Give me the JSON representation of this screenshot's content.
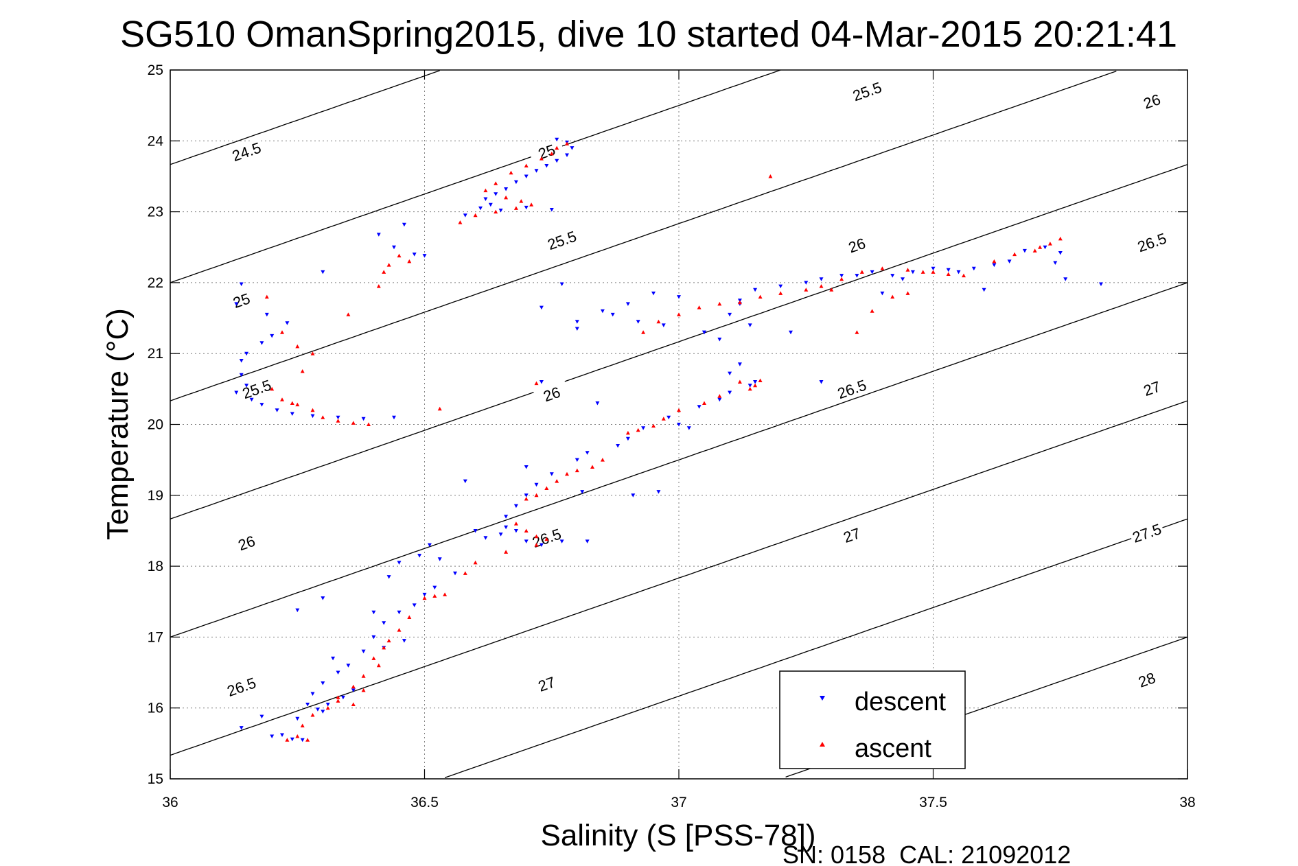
{
  "chart_data": {
    "type": "scatter",
    "title": "SG510 OmanSpring2015, dive 10 started 04-Mar-2015 20:21:41",
    "xlabel": "Salinity (S [PSS-78])",
    "ylabel": "Temperature (°C)",
    "xlim": [
      36,
      38
    ],
    "ylim": [
      15,
      25
    ],
    "xticks": [
      36,
      36.5,
      37,
      37.5,
      38
    ],
    "xtick_labels": [
      "36",
      "36.5",
      "37",
      "37.5",
      "38"
    ],
    "yticks": [
      15,
      16,
      17,
      18,
      19,
      20,
      21,
      22,
      23,
      24,
      25
    ],
    "ytick_labels": [
      "15",
      "16",
      "17",
      "18",
      "19",
      "20",
      "21",
      "22",
      "23",
      "24",
      "25"
    ],
    "grid": true,
    "legend_position": "bottom-right",
    "footer": "SN: 0158  CAL: 21092012",
    "series": [
      {
        "name": "descent",
        "color": "#0000ff",
        "marker": "triangle-down",
        "points": [
          [
            36.76,
            24.02
          ],
          [
            36.78,
            23.98
          ],
          [
            36.79,
            23.9
          ],
          [
            36.78,
            23.8
          ],
          [
            36.76,
            23.72
          ],
          [
            36.74,
            23.65
          ],
          [
            36.72,
            23.58
          ],
          [
            36.7,
            23.5
          ],
          [
            36.68,
            23.42
          ],
          [
            36.66,
            23.32
          ],
          [
            36.64,
            23.25
          ],
          [
            36.62,
            23.18
          ],
          [
            36.63,
            23.1
          ],
          [
            36.61,
            23.05
          ],
          [
            36.65,
            23.02
          ],
          [
            36.7,
            23.06
          ],
          [
            36.75,
            23.03
          ],
          [
            36.58,
            22.95
          ],
          [
            36.46,
            22.82
          ],
          [
            36.41,
            22.68
          ],
          [
            36.44,
            22.5
          ],
          [
            36.5,
            22.38
          ],
          [
            36.48,
            22.4
          ],
          [
            36.3,
            22.15
          ],
          [
            36.14,
            21.98
          ],
          [
            36.13,
            21.7
          ],
          [
            36.19,
            21.55
          ],
          [
            36.23,
            21.43
          ],
          [
            36.2,
            21.25
          ],
          [
            36.18,
            21.15
          ],
          [
            36.15,
            21.0
          ],
          [
            36.14,
            20.9
          ],
          [
            36.14,
            20.7
          ],
          [
            36.15,
            20.55
          ],
          [
            36.13,
            20.45
          ],
          [
            36.16,
            20.35
          ],
          [
            36.18,
            20.28
          ],
          [
            36.21,
            20.2
          ],
          [
            36.24,
            20.15
          ],
          [
            36.28,
            20.12
          ],
          [
            36.33,
            20.1
          ],
          [
            36.38,
            20.08
          ],
          [
            36.44,
            20.1
          ],
          [
            36.77,
            21.98
          ],
          [
            36.8,
            21.35
          ],
          [
            36.85,
            21.6
          ],
          [
            36.9,
            21.7
          ],
          [
            36.95,
            21.85
          ],
          [
            37.0,
            21.8
          ],
          [
            36.87,
            21.55
          ],
          [
            36.92,
            21.45
          ],
          [
            36.97,
            21.4
          ],
          [
            37.05,
            21.3
          ],
          [
            37.08,
            21.2
          ],
          [
            37.12,
            21.7
          ],
          [
            37.15,
            21.9
          ],
          [
            37.2,
            21.95
          ],
          [
            37.25,
            22.0
          ],
          [
            37.28,
            22.05
          ],
          [
            37.32,
            22.1
          ],
          [
            37.35,
            22.1
          ],
          [
            37.38,
            22.15
          ],
          [
            37.42,
            22.1
          ],
          [
            37.44,
            22.05
          ],
          [
            37.46,
            22.15
          ],
          [
            37.5,
            22.2
          ],
          [
            37.53,
            22.18
          ],
          [
            37.55,
            22.15
          ],
          [
            37.58,
            22.2
          ],
          [
            37.62,
            22.25
          ],
          [
            37.65,
            22.3
          ],
          [
            37.68,
            22.45
          ],
          [
            37.72,
            22.5
          ],
          [
            37.75,
            22.42
          ],
          [
            37.74,
            22.28
          ],
          [
            37.76,
            22.05
          ],
          [
            37.83,
            21.98
          ],
          [
            37.6,
            21.9
          ],
          [
            37.4,
            21.85
          ],
          [
            37.22,
            21.3
          ],
          [
            36.8,
            21.45
          ],
          [
            36.73,
            21.65
          ],
          [
            37.12,
            21.75
          ],
          [
            37.1,
            21.55
          ],
          [
            37.14,
            21.4
          ],
          [
            37.05,
            21.3
          ],
          [
            37.12,
            20.85
          ],
          [
            37.1,
            20.72
          ],
          [
            37.15,
            20.6
          ],
          [
            37.14,
            20.55
          ],
          [
            37.1,
            20.45
          ],
          [
            37.08,
            20.35
          ],
          [
            37.04,
            20.25
          ],
          [
            37.28,
            20.6
          ],
          [
            37.0,
            20.0
          ],
          [
            37.02,
            19.95
          ],
          [
            36.98,
            20.1
          ],
          [
            36.93,
            19.95
          ],
          [
            36.9,
            19.8
          ],
          [
            36.88,
            19.7
          ],
          [
            36.82,
            19.6
          ],
          [
            36.8,
            19.5
          ],
          [
            36.75,
            19.3
          ],
          [
            36.72,
            19.15
          ],
          [
            36.7,
            19.0
          ],
          [
            36.68,
            18.85
          ],
          [
            36.66,
            18.7
          ],
          [
            36.68,
            18.5
          ],
          [
            36.65,
            18.45
          ],
          [
            36.62,
            18.4
          ],
          [
            36.66,
            18.55
          ],
          [
            36.7,
            18.35
          ],
          [
            36.73,
            18.3
          ],
          [
            36.77,
            18.35
          ],
          [
            36.82,
            18.35
          ],
          [
            36.6,
            18.5
          ],
          [
            36.58,
            19.2
          ],
          [
            36.7,
            19.4
          ],
          [
            36.73,
            20.6
          ],
          [
            36.84,
            20.3
          ],
          [
            36.96,
            19.05
          ],
          [
            36.91,
            19.0
          ],
          [
            36.81,
            19.05
          ],
          [
            36.52,
            17.7
          ],
          [
            36.5,
            17.6
          ],
          [
            36.48,
            17.45
          ],
          [
            36.45,
            17.35
          ],
          [
            36.42,
            17.2
          ],
          [
            36.4,
            17.0
          ],
          [
            36.38,
            16.8
          ],
          [
            36.35,
            16.6
          ],
          [
            36.33,
            16.5
          ],
          [
            36.3,
            16.35
          ],
          [
            36.28,
            16.2
          ],
          [
            36.27,
            16.05
          ],
          [
            36.3,
            15.95
          ],
          [
            36.25,
            15.85
          ],
          [
            36.22,
            15.62
          ],
          [
            36.24,
            15.56
          ],
          [
            36.26,
            15.55
          ],
          [
            36.2,
            15.6
          ],
          [
            36.14,
            15.72
          ],
          [
            36.18,
            15.88
          ],
          [
            36.25,
            17.38
          ],
          [
            36.3,
            17.55
          ],
          [
            36.4,
            17.35
          ],
          [
            36.43,
            17.85
          ],
          [
            36.45,
            18.05
          ],
          [
            36.49,
            18.15
          ],
          [
            36.51,
            18.3
          ],
          [
            36.53,
            18.1
          ],
          [
            36.56,
            17.9
          ],
          [
            36.46,
            16.95
          ],
          [
            36.42,
            16.85
          ],
          [
            36.32,
            16.7
          ],
          [
            36.36,
            16.25
          ],
          [
            36.34,
            16.15
          ],
          [
            36.31,
            16.05
          ],
          [
            36.29,
            15.98
          ]
        ]
      },
      {
        "name": "ascent",
        "color": "#ff0000",
        "marker": "triangle-up",
        "points": [
          [
            36.78,
            23.96
          ],
          [
            36.76,
            23.9
          ],
          [
            36.75,
            23.82
          ],
          [
            36.73,
            23.75
          ],
          [
            36.7,
            23.65
          ],
          [
            36.67,
            23.55
          ],
          [
            36.64,
            23.4
          ],
          [
            36.62,
            23.3
          ],
          [
            36.66,
            23.2
          ],
          [
            36.69,
            23.15
          ],
          [
            36.71,
            23.1
          ],
          [
            36.68,
            23.05
          ],
          [
            36.64,
            23.0
          ],
          [
            36.6,
            22.95
          ],
          [
            36.57,
            22.85
          ],
          [
            36.45,
            22.38
          ],
          [
            36.47,
            22.3
          ],
          [
            36.43,
            22.25
          ],
          [
            36.42,
            22.15
          ],
          [
            36.41,
            21.95
          ],
          [
            36.35,
            21.55
          ],
          [
            36.19,
            21.8
          ],
          [
            36.22,
            21.3
          ],
          [
            36.25,
            21.1
          ],
          [
            36.28,
            21.0
          ],
          [
            36.26,
            20.75
          ],
          [
            36.2,
            20.5
          ],
          [
            36.22,
            20.35
          ],
          [
            36.24,
            20.3
          ],
          [
            36.25,
            20.28
          ],
          [
            36.28,
            20.2
          ],
          [
            36.3,
            20.1
          ],
          [
            36.33,
            20.05
          ],
          [
            36.36,
            20.02
          ],
          [
            36.39,
            20.0
          ],
          [
            36.53,
            20.22
          ],
          [
            36.72,
            20.58
          ],
          [
            37.18,
            23.5
          ],
          [
            36.93,
            21.3
          ],
          [
            36.96,
            21.45
          ],
          [
            37.0,
            21.55
          ],
          [
            37.04,
            21.65
          ],
          [
            37.08,
            21.7
          ],
          [
            37.12,
            21.72
          ],
          [
            37.16,
            21.8
          ],
          [
            37.2,
            21.85
          ],
          [
            37.25,
            21.9
          ],
          [
            37.28,
            21.95
          ],
          [
            37.32,
            22.05
          ],
          [
            37.36,
            22.15
          ],
          [
            37.4,
            22.2
          ],
          [
            37.45,
            22.18
          ],
          [
            37.48,
            22.15
          ],
          [
            37.5,
            22.15
          ],
          [
            37.53,
            22.12
          ],
          [
            37.56,
            22.1
          ],
          [
            37.62,
            22.3
          ],
          [
            37.66,
            22.4
          ],
          [
            37.7,
            22.45
          ],
          [
            37.73,
            22.55
          ],
          [
            37.75,
            22.62
          ],
          [
            37.71,
            22.5
          ],
          [
            37.3,
            21.9
          ],
          [
            37.42,
            21.8
          ],
          [
            37.45,
            21.85
          ],
          [
            37.38,
            21.6
          ],
          [
            37.35,
            21.3
          ],
          [
            37.12,
            20.6
          ],
          [
            37.15,
            20.55
          ],
          [
            37.16,
            20.62
          ],
          [
            37.14,
            20.5
          ],
          [
            37.08,
            20.4
          ],
          [
            37.05,
            20.3
          ],
          [
            37.0,
            20.2
          ],
          [
            36.97,
            20.08
          ],
          [
            36.95,
            19.98
          ],
          [
            36.92,
            19.92
          ],
          [
            36.9,
            19.88
          ],
          [
            36.85,
            19.5
          ],
          [
            36.83,
            19.4
          ],
          [
            36.8,
            19.35
          ],
          [
            36.78,
            19.3
          ],
          [
            36.76,
            19.2
          ],
          [
            36.74,
            19.1
          ],
          [
            36.72,
            19.0
          ],
          [
            36.7,
            18.95
          ],
          [
            36.68,
            18.6
          ],
          [
            36.7,
            18.5
          ],
          [
            36.72,
            18.42
          ],
          [
            36.74,
            18.38
          ],
          [
            36.72,
            18.3
          ],
          [
            36.66,
            18.2
          ],
          [
            36.6,
            18.05
          ],
          [
            36.58,
            17.9
          ],
          [
            36.54,
            17.6
          ],
          [
            36.52,
            17.58
          ],
          [
            36.5,
            17.55
          ],
          [
            36.47,
            17.28
          ],
          [
            36.45,
            17.1
          ],
          [
            36.43,
            16.95
          ],
          [
            36.42,
            16.85
          ],
          [
            36.4,
            16.7
          ],
          [
            36.41,
            16.6
          ],
          [
            36.38,
            16.45
          ],
          [
            36.36,
            16.3
          ],
          [
            36.33,
            16.15
          ],
          [
            36.31,
            16.0
          ],
          [
            36.28,
            15.9
          ],
          [
            36.26,
            15.75
          ],
          [
            36.25,
            15.6
          ],
          [
            36.27,
            15.55
          ],
          [
            36.23,
            15.55
          ],
          [
            36.36,
            16.05
          ],
          [
            36.33,
            16.1
          ],
          [
            36.38,
            16.25
          ]
        ]
      }
    ],
    "isopycnals": [
      {
        "value": 24.5,
        "labels": [
          [
            36.15,
            23.85
          ]
        ]
      },
      {
        "value": 25,
        "labels": [
          [
            36.14,
            21.75
          ],
          [
            36.74,
            23.85
          ]
        ]
      },
      {
        "value": 25.5,
        "labels": [
          [
            36.17,
            20.5
          ],
          [
            36.77,
            22.6
          ],
          [
            37.37,
            24.7
          ]
        ]
      },
      {
        "value": 26,
        "labels": [
          [
            36.15,
            18.33
          ],
          [
            36.75,
            20.43
          ],
          [
            37.35,
            22.53
          ],
          [
            37.93,
            24.56
          ]
        ]
      },
      {
        "value": 26.5,
        "labels": [
          [
            36.14,
            16.3
          ],
          [
            36.74,
            18.4
          ],
          [
            37.34,
            20.5
          ],
          [
            37.93,
            22.57
          ]
        ]
      },
      {
        "value": 27,
        "labels": [
          [
            36.74,
            16.34
          ],
          [
            37.34,
            18.44
          ],
          [
            37.93,
            20.51
          ]
        ]
      },
      {
        "value": 27.5,
        "labels": [
          [
            37.92,
            18.47
          ]
        ]
      },
      {
        "value": 28,
        "labels": [
          [
            37.92,
            16.4
          ]
        ]
      }
    ]
  }
}
